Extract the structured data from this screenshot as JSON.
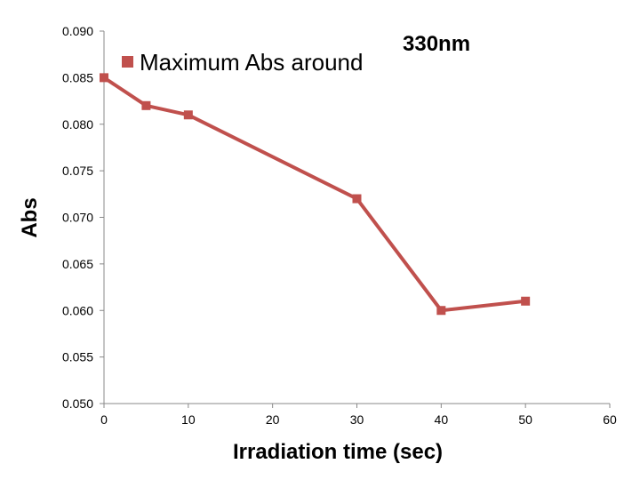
{
  "chart_data": {
    "type": "line",
    "title": "",
    "xlabel": "Irradiation time (sec)",
    "ylabel": "Abs",
    "xlim": [
      0,
      60
    ],
    "ylim": [
      0.05,
      0.09
    ],
    "xticks": [
      "0",
      "10",
      "20",
      "30",
      "40",
      "50",
      "60"
    ],
    "yticks": [
      "0.050",
      "0.055",
      "0.060",
      "0.065",
      "0.070",
      "0.075",
      "0.080",
      "0.085",
      "0.090"
    ],
    "grid": false,
    "legend_position": "top-left",
    "annotation": "330nm",
    "series": [
      {
        "name": "Maximum Abs around",
        "color": "#c0504d",
        "marker": "square",
        "x": [
          0,
          5,
          10,
          30,
          40,
          50
        ],
        "y": [
          0.085,
          0.082,
          0.081,
          0.072,
          0.06,
          0.061
        ]
      }
    ]
  }
}
